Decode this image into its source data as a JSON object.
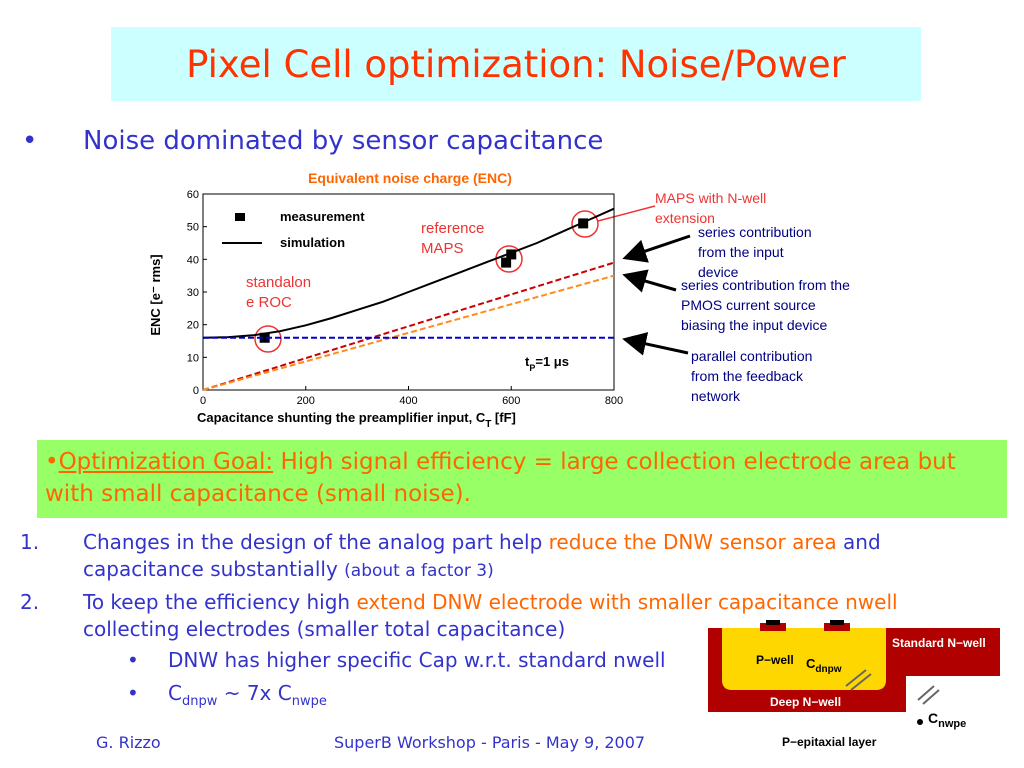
{
  "title": "Pixel Cell optimization: Noise/Power",
  "bullet_marker": "•",
  "bullet": "Noise dominated by sensor capacitance",
  "chart_data": {
    "type": "line",
    "title": "Equivalent noise charge (ENC)",
    "xlabel": {
      "main": "Capacitance shunting the preamplifier input, C",
      "sub": "T",
      "rest": " [fF]"
    },
    "ylabel": "ENC [e⁻ rms]",
    "xlim": [
      0,
      800
    ],
    "ylim": [
      0,
      60
    ],
    "xticks": [
      0,
      200,
      400,
      600,
      800
    ],
    "yticks": [
      0,
      10,
      20,
      30,
      40,
      50,
      60
    ],
    "series": [
      {
        "name": "measurement",
        "mark": "square",
        "color": "#000000",
        "x": [
          120,
          590,
          600,
          740
        ],
        "values": [
          16,
          39,
          41.5,
          51
        ]
      },
      {
        "name": "simulation",
        "mark": "line",
        "color": "#000000",
        "x": [
          0,
          50,
          100,
          150,
          200,
          250,
          300,
          350,
          400,
          450,
          500,
          550,
          600,
          650,
          700,
          750,
          800
        ],
        "values": [
          16,
          16.2,
          16.8,
          18,
          19.8,
          22,
          24.5,
          27,
          30,
          33,
          36,
          39,
          42,
          45,
          48.5,
          52,
          55.5
        ]
      },
      {
        "mark": "dash",
        "color": "#cc0000",
        "x": [
          0,
          800
        ],
        "values": [
          0,
          39
        ]
      },
      {
        "mark": "dash",
        "color": "#ff8c1a",
        "x": [
          0,
          800
        ],
        "values": [
          0,
          35
        ]
      },
      {
        "mark": "dash",
        "color": "#0000cc",
        "x": [
          0,
          800
        ],
        "values": [
          16,
          16
        ]
      }
    ],
    "t_label": {
      "main": "t",
      "sub": "P",
      "rest": "=1 μs"
    },
    "annotations": [
      {
        "lines": [
          "reference",
          "MAPS"
        ]
      },
      {
        "lines": [
          "standalon",
          "e ROC"
        ]
      },
      {
        "lines": [
          "MAPS with N-well",
          "extension"
        ]
      },
      {
        "lines": [
          "series contribution",
          "from the input",
          "device"
        ]
      },
      {
        "lines": [
          "series contribution from the",
          "PMOS current source",
          "biasing the input device"
        ]
      },
      {
        "lines": [
          "parallel contribution",
          "from the feedback",
          "network"
        ]
      }
    ]
  },
  "goal": {
    "marker": "•",
    "label": "Optimization Goal:",
    "text": " High signal efficiency = large collection electrode area but with small capacitance (small noise)."
  },
  "items": [
    {
      "number": "1.",
      "runs": [
        {
          "text": "Changes in the design of the analog part help "
        },
        {
          "text": "reduce the DNW sensor area",
          "accent": true
        },
        {
          "text": " and capacitance substantially "
        },
        {
          "text": "(about a factor 3)",
          "small": true
        }
      ]
    },
    {
      "number": "2.",
      "runs": [
        {
          "text": "To keep the efficiency high "
        },
        {
          "text": "extend DNW electrode with smaller capacitance nwell",
          "accent": true
        },
        {
          "text": " collecting electrodes (smaller total capacitance)"
        }
      ]
    }
  ],
  "subitems": [
    {
      "marker": "•",
      "runs": [
        {
          "text": "DNW has higher specific Cap w.r.t. standard nwell"
        }
      ]
    },
    {
      "marker": "•",
      "runs": [
        {
          "text": "C"
        },
        {
          "text": "dnpw",
          "sub": true
        },
        {
          "text": " ~ 7x C"
        },
        {
          "text": "nwpe",
          "sub": true
        }
      ]
    }
  ],
  "diagram": {
    "pwell": "P−well",
    "cdnpw": {
      "main": "C",
      "sub": "dnpw"
    },
    "standard": "Standard N−well",
    "deep": "Deep N−well",
    "cnwpe": {
      "main": "C",
      "sub": "nwpe"
    },
    "epi": "P−epitaxial layer"
  },
  "footer": {
    "author": "G. Rizzo",
    "event": "SuperB Workshop - Paris - May 9, 2007"
  }
}
